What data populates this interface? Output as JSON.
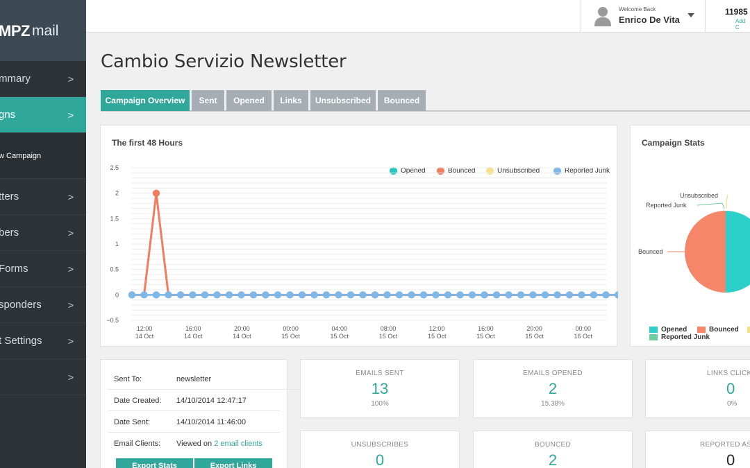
{
  "brand": {
    "logo_bold": "MPZ",
    "logo_light": "mail"
  },
  "sidebar": {
    "items": [
      {
        "label": "mmary",
        "active": false
      },
      {
        "label": "gns",
        "active": true
      },
      {
        "label": "w Campaign",
        "sub": true
      },
      {
        "label": "tters",
        "active": false
      },
      {
        "label": "bers",
        "active": false
      },
      {
        "label": "Forms",
        "active": false
      },
      {
        "label": "sponders",
        "active": false
      },
      {
        "label": "t Settings",
        "active": false
      },
      {
        "label": "",
        "active": false
      }
    ],
    "chevron": ">"
  },
  "topbar": {
    "welcome": "Welcome Back",
    "user_name": "Enrico De Vita",
    "credits": "11985",
    "credits_sub": "Add C"
  },
  "page": {
    "title": "Cambio Servizio Newsletter"
  },
  "tabs": [
    {
      "label": "Campaign Overview",
      "active": true
    },
    {
      "label": "Sent"
    },
    {
      "label": "Opened"
    },
    {
      "label": "Links"
    },
    {
      "label": "Unsubscribed"
    },
    {
      "label": "Bounced"
    }
  ],
  "colors": {
    "accent": "#2fa79b",
    "opened": "#26c6c0",
    "bounced": "#f07d5f",
    "unsubscribed": "#f5e18a",
    "reported_junk": "#7eb8e8",
    "junk_pie": "#6dcf9f"
  },
  "chart_data": {
    "type": "line",
    "title": "The first 48 Hours",
    "ylim": [
      -0.5,
      2.5
    ],
    "y_ticks": [
      "2.5",
      "2",
      "1.5",
      "1",
      "0.5",
      "0",
      "−0.5"
    ],
    "x_ticks": [
      {
        "time": "12:00",
        "date": "14 Oct"
      },
      {
        "time": "16:00",
        "date": "14 Oct"
      },
      {
        "time": "20:00",
        "date": "14 Oct"
      },
      {
        "time": "00:00",
        "date": "15 Oct"
      },
      {
        "time": "04:00",
        "date": "15 Oct"
      },
      {
        "time": "08:00",
        "date": "15 Oct"
      },
      {
        "time": "12:00",
        "date": "15 Oct"
      },
      {
        "time": "16:00",
        "date": "15 Oct"
      },
      {
        "time": "20:00",
        "date": "15 Oct"
      },
      {
        "time": "00:00",
        "date": "16 Oct"
      }
    ],
    "x_start": "14 Oct 11:00",
    "x_step_hours": 1,
    "legend": "top-right",
    "series": [
      {
        "name": "Opened",
        "values": [
          0,
          0,
          0,
          0,
          0,
          0,
          0,
          0,
          0,
          0,
          0,
          0,
          0,
          0,
          0,
          0,
          0,
          0,
          0,
          0,
          0,
          0,
          0,
          0,
          0,
          0,
          0,
          0,
          0,
          0,
          0,
          0,
          0,
          0,
          0,
          0,
          0,
          0,
          0,
          0,
          0,
          0
        ]
      },
      {
        "name": "Bounced",
        "values": [
          0,
          0,
          2,
          0,
          0,
          0,
          0,
          0,
          0,
          0,
          0,
          0,
          0,
          0,
          0,
          0,
          0,
          0,
          0,
          0,
          0,
          0,
          0,
          0,
          0,
          0,
          0,
          0,
          0,
          0,
          0,
          0,
          0,
          0,
          0,
          0,
          0,
          0,
          0,
          0,
          0,
          0
        ]
      },
      {
        "name": "Unsubscribed",
        "values": [
          0,
          0,
          0,
          0,
          0,
          0,
          0,
          0,
          0,
          0,
          0,
          0,
          0,
          0,
          0,
          0,
          0,
          0,
          0,
          0,
          0,
          0,
          0,
          0,
          0,
          0,
          0,
          0,
          0,
          0,
          0,
          0,
          0,
          0,
          0,
          0,
          0,
          0,
          0,
          0,
          0,
          0
        ]
      },
      {
        "name": "Reported Junk",
        "values": [
          0,
          0,
          0,
          0,
          0,
          0,
          0,
          0,
          0,
          0,
          0,
          0,
          0,
          0,
          0,
          0,
          0,
          0,
          0,
          0,
          0,
          0,
          0,
          0,
          0,
          0,
          0,
          0,
          0,
          0,
          0,
          0,
          0,
          0,
          0,
          0,
          0,
          0,
          0,
          0,
          0,
          0
        ]
      }
    ]
  },
  "campaign_stats": {
    "title": "Campaign Stats",
    "pie_labels": {
      "unsubscribed": "Unsubscribed",
      "reported_junk": "Reported Junk",
      "bounced": "Bounced"
    },
    "legend": [
      "Opened",
      "Bounced",
      "Reported Junk"
    ],
    "slices": [
      {
        "name": "Opened",
        "value": 2
      },
      {
        "name": "Bounced",
        "value": 2
      },
      {
        "name": "Unsubscribed",
        "value": 0
      },
      {
        "name": "Reported Junk",
        "value": 0
      }
    ]
  },
  "details": {
    "rows": [
      {
        "key": "Sent To:",
        "value": "newsletter"
      },
      {
        "key": "Date Created:",
        "value": "14/10/2014 12:47:17"
      },
      {
        "key": "Date Sent:",
        "value": "14/10/2014 11:46:00"
      },
      {
        "key": "Email Clients:",
        "value": "Viewed on",
        "link": "2 email clients"
      }
    ],
    "buttons": [
      "Export Stats",
      "Export Links"
    ]
  },
  "stats": [
    {
      "label": "EMAILS SENT",
      "value": "13",
      "pct": "100%"
    },
    {
      "label": "EMAILS OPENED",
      "value": "2",
      "pct": "15.38%"
    },
    {
      "label": "LINKS CLICKED",
      "value": "0",
      "pct": "0%"
    },
    {
      "label": "UNSUBSCRIBES",
      "value": "0",
      "pct": ""
    },
    {
      "label": "BOUNCED",
      "value": "2",
      "pct": ""
    },
    {
      "label": "REPORTED AS JUNK",
      "value": "0",
      "pct": ""
    }
  ]
}
